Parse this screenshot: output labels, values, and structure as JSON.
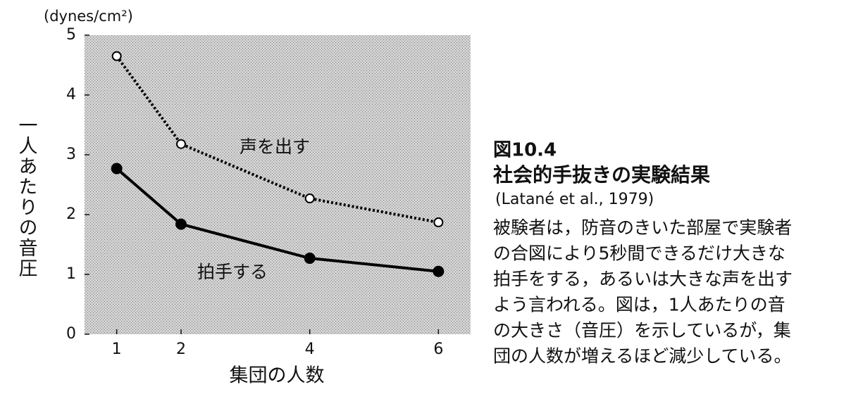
{
  "chart_data": {
    "type": "line",
    "y_unit": "(dynes/cm²)",
    "ylabel": "一人あたりの音圧",
    "xlabel": "集団の人数",
    "x": [
      1,
      2,
      4,
      6
    ],
    "xlim": [
      0.5,
      6.5
    ],
    "xticks": [
      1,
      2,
      4,
      6
    ],
    "ylim": [
      0,
      5
    ],
    "yticks": [
      0,
      1,
      2,
      3,
      4,
      5
    ],
    "series": [
      {
        "name": "声を出す",
        "color": "#000000",
        "dash": "dotted",
        "marker": "open",
        "values": [
          4.65,
          3.18,
          2.27,
          1.87
        ]
      },
      {
        "name": "拍手する",
        "color": "#000000",
        "dash": "solid",
        "marker": "filled",
        "values": [
          2.77,
          1.84,
          1.27,
          1.05
        ]
      }
    ]
  },
  "caption": {
    "figure": "図10.4",
    "title": "社会的手抜きの実験結果",
    "citation": "(Latané et al., 1979)",
    "lines": [
      "被験者は，防音のきいた部屋で実験者",
      "の合図により5秒間できるだけ大きな",
      "拍手をする，あるいは大きな声を出す",
      "よう言われる。図は，1人あたりの音",
      "の大きさ（音圧）を示しているが，集",
      "団の人数が増えるほど減少している。"
    ]
  }
}
